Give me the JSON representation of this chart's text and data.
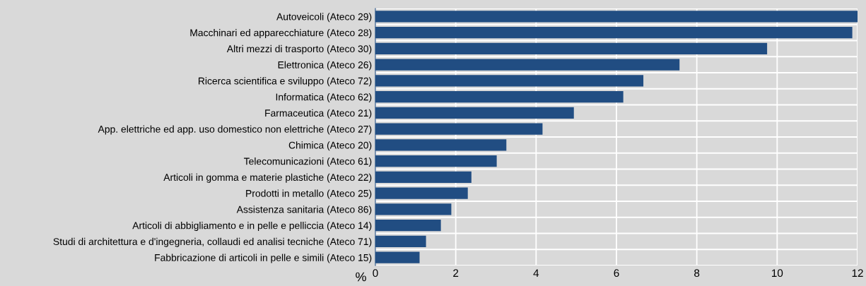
{
  "chart_data": {
    "type": "bar",
    "orientation": "horizontal",
    "xlabel": "%",
    "categories": [
      "Autoveicoli (Ateco 29)",
      "Macchinari ed apparecchiature (Ateco 28)",
      "Altri mezzi di trasporto (Ateco 30)",
      "Elettronica (Ateco 26)",
      "Ricerca scientifica e sviluppo (Ateco 72)",
      "Informatica (Ateco 62)",
      "Farmaceutica (Ateco 21)",
      "App. elettriche ed app. uso domestico non elettriche (Ateco 27)",
      "Chimica (Ateco 20)",
      "Telecomunicazioni (Ateco 61)",
      "Articoli in gomma e materie plastiche (Ateco 22)",
      "Prodotti in metallo (Ateco 25)",
      "Assistenza sanitaria (Ateco 86)",
      "Articoli di abbigliamento e in pelle e pelliccia (Ateco 14)",
      "Studi di architettura e d'ingegneria, collaudi ed analisi tecniche (Ateco 71)",
      "Fabbricazione di articoli in pelle e simili (Ateco 15)"
    ],
    "values": [
      12.0,
      11.87,
      9.75,
      7.57,
      6.67,
      6.17,
      4.94,
      4.16,
      3.26,
      3.02,
      2.39,
      2.3,
      1.89,
      1.63,
      1.26,
      1.1
    ],
    "color": "#214d82",
    "xlim": [
      0,
      12
    ],
    "xticks": [
      0,
      2,
      4,
      6,
      8,
      10,
      12
    ],
    "grid": true
  }
}
